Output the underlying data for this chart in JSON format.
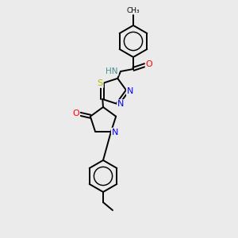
{
  "background_color": "#ebebeb",
  "bond_color": "#000000",
  "atom_colors": {
    "N": "#0000ff",
    "O": "#ff0000",
    "S": "#b8b800",
    "H": "#4a9090",
    "C": "#000000"
  },
  "figsize": [
    3.0,
    3.0
  ],
  "dpi": 100
}
